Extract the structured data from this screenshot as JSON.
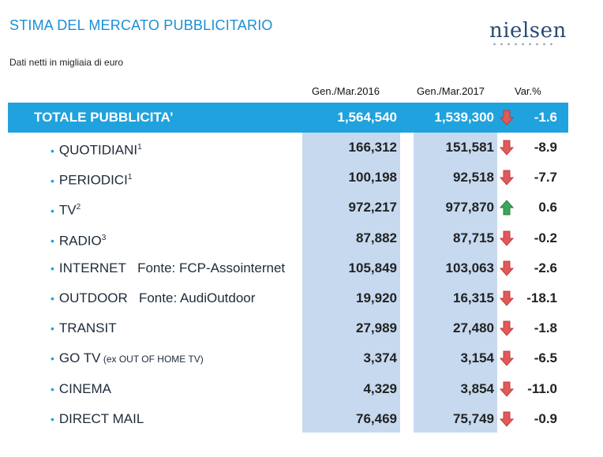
{
  "header": {
    "title": "STIMA DEL MERCATO PUBBLICITARIO",
    "logo_text": "nielsen",
    "subtitle": "Dati netti in migliaia di euro"
  },
  "columns": [
    "Gen./Mar.2016",
    "Gen./Mar.2017",
    "Var.%"
  ],
  "total": {
    "label": "TOTALE PUBBLICITA’",
    "v2016": "1,564,540",
    "v2017": "1,539,300",
    "trend": "down",
    "var": "-1.6"
  },
  "rows": [
    {
      "label": "QUOTIDIANI",
      "sup": "1",
      "extra": "",
      "v2016": "166,312",
      "v2017": "151,581",
      "trend": "down",
      "var": "-8.9"
    },
    {
      "label": "PERIODICI",
      "sup": "1",
      "extra": "",
      "v2016": "100,198",
      "v2017": "92,518",
      "trend": "down",
      "var": "-7.7"
    },
    {
      "label": "TV",
      "sup": "2",
      "extra": "",
      "v2016": "972,217",
      "v2017": "977,870",
      "trend": "up",
      "var": "0.6"
    },
    {
      "label": "RADIO",
      "sup": "3",
      "extra": "",
      "v2016": "87,882",
      "v2017": "87,715",
      "trend": "down",
      "var": "-0.2"
    },
    {
      "label": "INTERNET",
      "sup": "",
      "extra": "Fonte: FCP-Assointernet",
      "v2016": "105,849",
      "v2017": "103,063",
      "trend": "down",
      "var": "-2.6"
    },
    {
      "label": "OUTDOOR",
      "sup": "",
      "extra": "Fonte: AudiOutdoor",
      "v2016": "19,920",
      "v2017": "16,315",
      "trend": "down",
      "var": "-18.1"
    },
    {
      "label": "TRANSIT",
      "sup": "",
      "extra": "",
      "v2016": "27,989",
      "v2017": "27,480",
      "trend": "down",
      "var": "-1.8"
    },
    {
      "label": "GO TV",
      "sup": "",
      "small": "(ex OUT OF HOME TV)",
      "extra": "",
      "v2016": "3,374",
      "v2017": "3,154",
      "trend": "down",
      "var": "-6.5"
    },
    {
      "label": "CINEMA",
      "sup": "",
      "extra": "",
      "v2016": "4,329",
      "v2017": "3,854",
      "trend": "down",
      "var": "-11.0"
    },
    {
      "label": "DIRECT MAIL",
      "sup": "",
      "extra": "",
      "v2016": "76,469",
      "v2017": "75,749",
      "trend": "down",
      "var": "-0.9"
    }
  ],
  "colors": {
    "accent": "#1fa2dd",
    "band": "#c6d9ef",
    "down": "#e05a5a",
    "up": "#3aa85a"
  }
}
